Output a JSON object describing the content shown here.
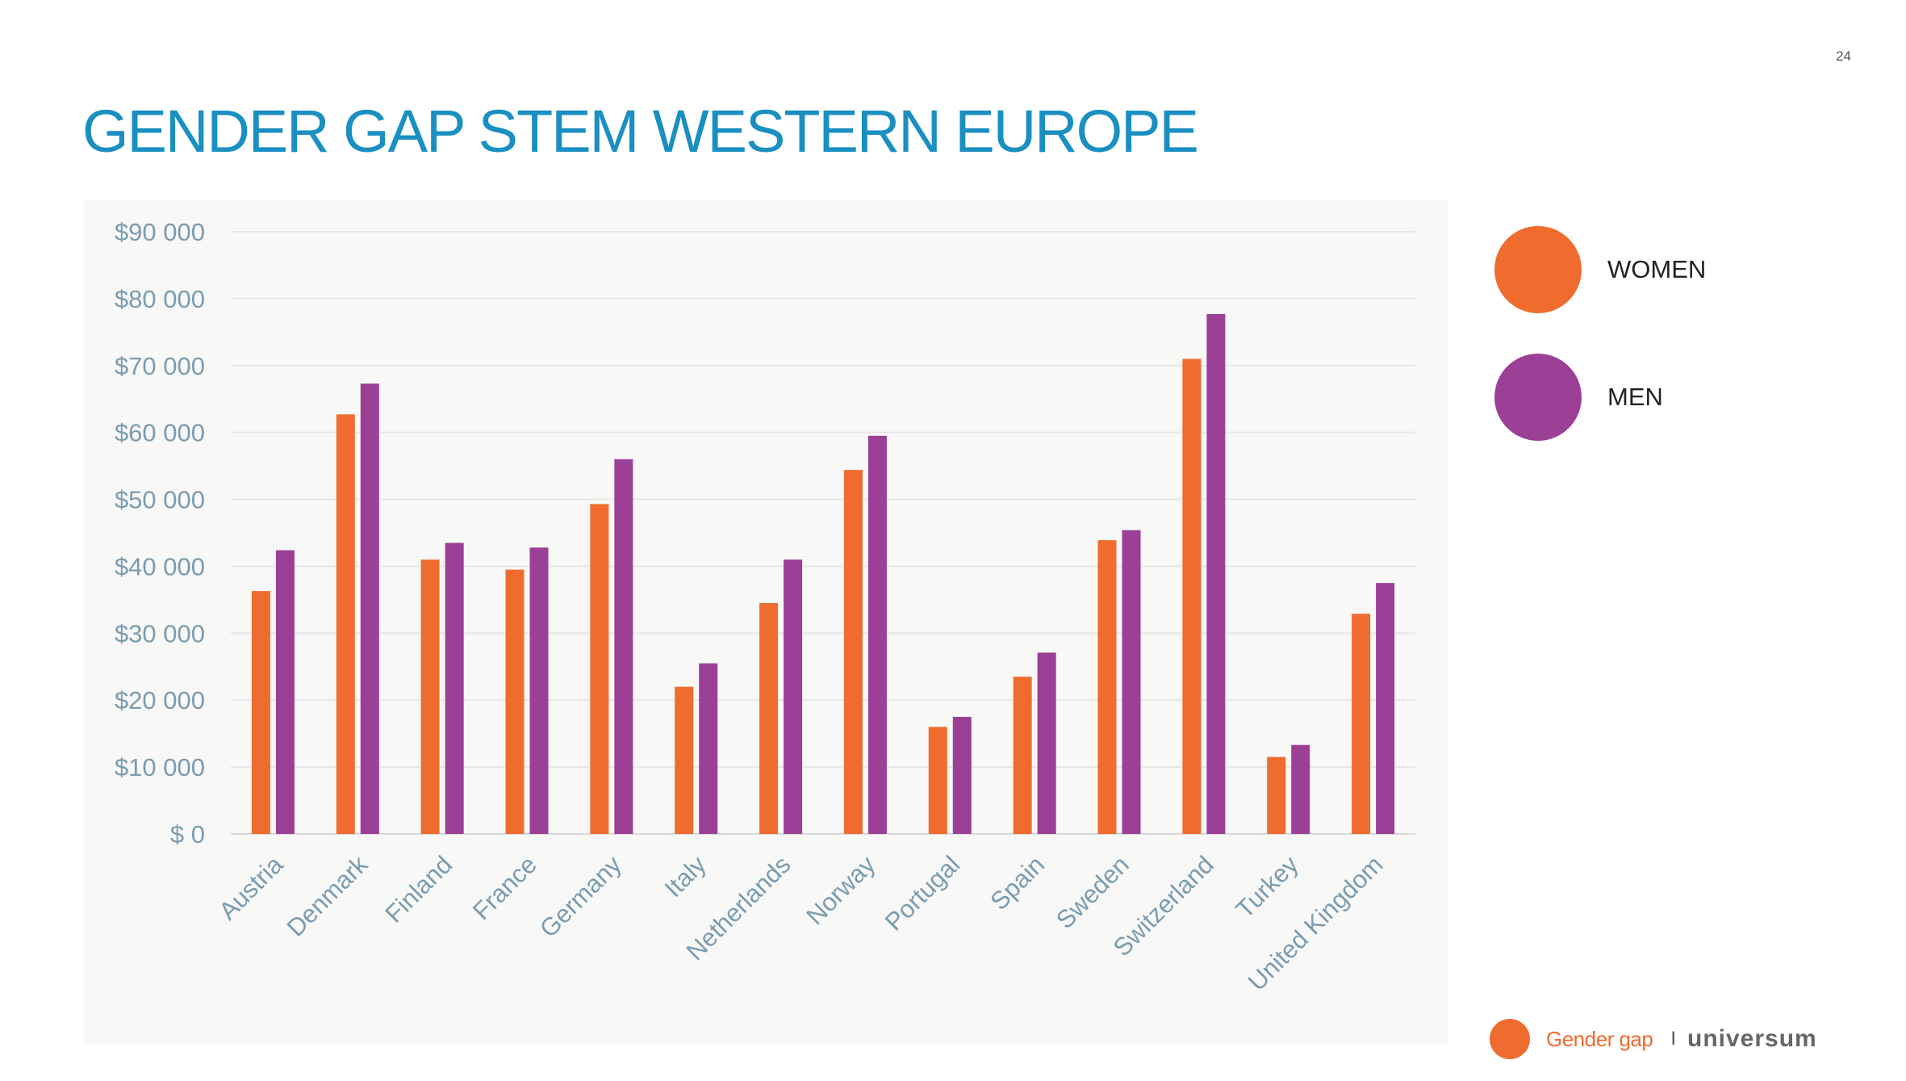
{
  "page": {
    "number": "24",
    "title": "GENDER GAP STEM WESTERN EUROPE"
  },
  "legend": {
    "items": [
      {
        "label": "WOMEN",
        "color": "#f06c2e"
      },
      {
        "label": "MEN",
        "color": "#9b3f97"
      }
    ]
  },
  "footer": {
    "section": "Gender gap",
    "separator": "I",
    "brand": "universum",
    "dot_color": "#ef6b2f"
  },
  "chart_data": {
    "type": "bar",
    "title": "",
    "xlabel": "",
    "ylabel": "",
    "ylim": [
      0,
      90000
    ],
    "y_ticks": [
      0,
      10000,
      20000,
      30000,
      40000,
      50000,
      60000,
      70000,
      80000,
      90000
    ],
    "y_tick_labels": [
      "$ 0",
      "$10 000",
      "$20 000",
      "$30 000",
      "$40 000",
      "$50 000",
      "$60 000",
      "$70 000",
      "$80 000",
      "$90 000"
    ],
    "grid": true,
    "legend": "right",
    "categories": [
      "Austria",
      "Denmark",
      "Finland",
      "France",
      "Germany",
      "Italy",
      "Netherlands",
      "Norway",
      "Portugal",
      "Spain",
      "Sweden",
      "Switzerland",
      "Turkey",
      "United Kingdom"
    ],
    "series": [
      {
        "name": "WOMEN",
        "color": "#f06c2e",
        "values": [
          36300,
          62700,
          41000,
          39500,
          49300,
          22000,
          34500,
          54400,
          16000,
          23500,
          43900,
          71000,
          11500,
          32900
        ]
      },
      {
        "name": "MEN",
        "color": "#9b3f97",
        "values": [
          42400,
          67300,
          43500,
          42800,
          56000,
          25500,
          41000,
          59500,
          17500,
          27100,
          45400,
          77700,
          13300,
          37500
        ]
      }
    ]
  }
}
